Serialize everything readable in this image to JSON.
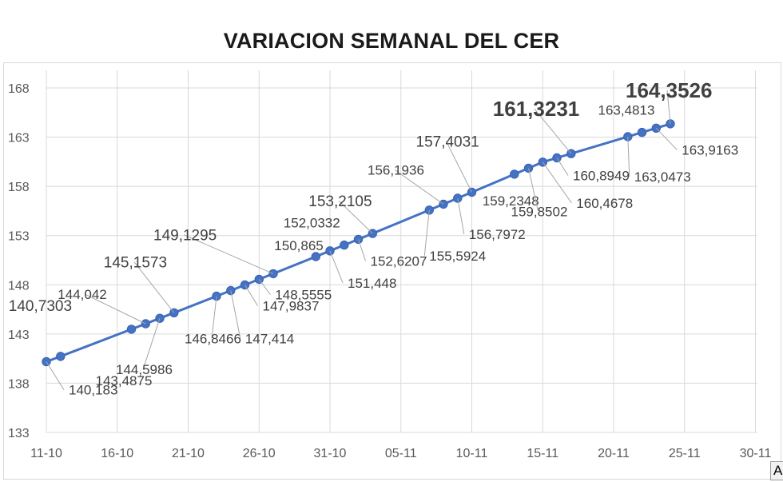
{
  "chart_data": {
    "type": "line",
    "title": "VARIACION SEMANAL DEL CER",
    "xlabel": "",
    "ylabel": "",
    "ylim": [
      133,
      168
    ],
    "yticks": [
      "133",
      "138",
      "143",
      "148",
      "153",
      "158",
      "163",
      "168"
    ],
    "xticks": [
      "11-10",
      "16-10",
      "21-10",
      "26-10",
      "31-10",
      "05-11",
      "10-11",
      "15-11",
      "20-11",
      "25-11",
      "30-11"
    ],
    "grid": true,
    "line_color": "#4472c4",
    "series": [
      {
        "points": [
          {
            "x": "11-10",
            "y": 140.183,
            "label": "140,183"
          },
          {
            "x": "12-10",
            "y": 140.7303,
            "label": "140,7303"
          },
          {
            "x": "17-10",
            "y": 143.4875,
            "label": "143,4875"
          },
          {
            "x": "18-10",
            "y": 144.042,
            "label": "144,042"
          },
          {
            "x": "19-10",
            "y": 144.5986,
            "label": "144,5986"
          },
          {
            "x": "20-10",
            "y": 145.1573,
            "label": "145,1573"
          },
          {
            "x": "23-10",
            "y": 146.8466,
            "label": "146,8466"
          },
          {
            "x": "24-10",
            "y": 147.414,
            "label": "147,414"
          },
          {
            "x": "25-10",
            "y": 147.9837,
            "label": "147,9837"
          },
          {
            "x": "26-10",
            "y": 148.5555,
            "label": "148,5555"
          },
          {
            "x": "27-10",
            "y": 149.1295,
            "label": "149,1295"
          },
          {
            "x": "30-10",
            "y": 150.865,
            "label": "150,865"
          },
          {
            "x": "31-10",
            "y": 151.448,
            "label": "151,448"
          },
          {
            "x": "01-11",
            "y": 152.0332,
            "label": "152,0332"
          },
          {
            "x": "02-11",
            "y": 152.6207,
            "label": "152,6207"
          },
          {
            "x": "03-11",
            "y": 153.2105,
            "label": "153,2105"
          },
          {
            "x": "07-11",
            "y": 155.5924,
            "label": "155,5924"
          },
          {
            "x": "08-11",
            "y": 156.1936,
            "label": "156,1936"
          },
          {
            "x": "09-11",
            "y": 156.7972,
            "label": "156,7972"
          },
          {
            "x": "10-11",
            "y": 157.4031,
            "label": "157,4031"
          },
          {
            "x": "13-11",
            "y": 159.2348,
            "label": "159,2348"
          },
          {
            "x": "14-11",
            "y": 159.8502,
            "label": "159,8502"
          },
          {
            "x": "15-11",
            "y": 160.4678,
            "label": "160,4678"
          },
          {
            "x": "16-11",
            "y": 160.8949,
            "label": "160,8949"
          },
          {
            "x": "17-11",
            "y": 161.3231,
            "label": "161,3231"
          },
          {
            "x": "21-11",
            "y": 163.0473,
            "label": "163,0473"
          },
          {
            "x": "22-11",
            "y": 163.4813,
            "label": "163,4813"
          },
          {
            "x": "23-11",
            "y": 163.9163,
            "label": "163,9163"
          },
          {
            "x": "24-11",
            "y": 164.3526,
            "label": "164,3526"
          }
        ]
      }
    ]
  },
  "corner_glyph": "A"
}
